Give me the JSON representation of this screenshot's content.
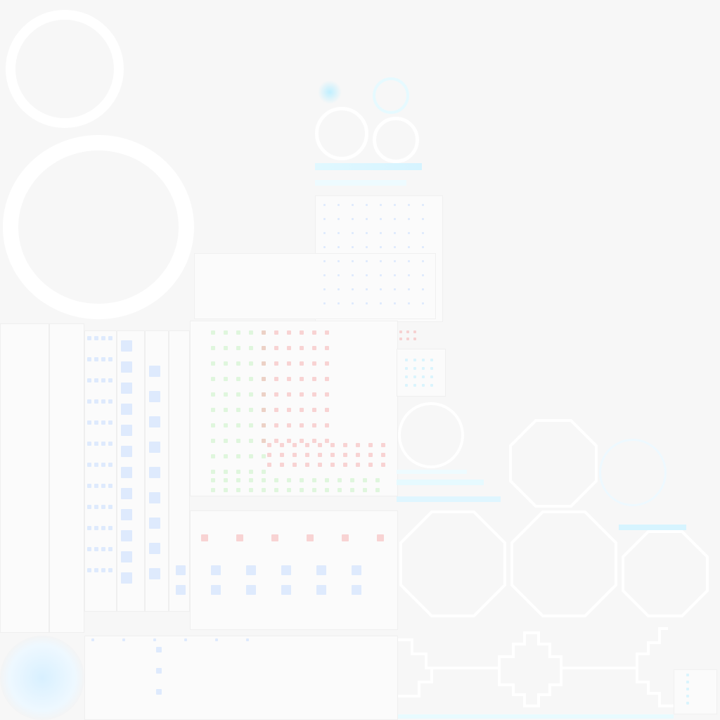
{
  "atlas": {
    "background": "#f7f7f7",
    "ring_color": "#ffffff",
    "accents": {
      "cyan": "#bfefff",
      "blue": "#c7dcff",
      "red": "#f6b3b3",
      "green": "#c9f2c4"
    }
  }
}
